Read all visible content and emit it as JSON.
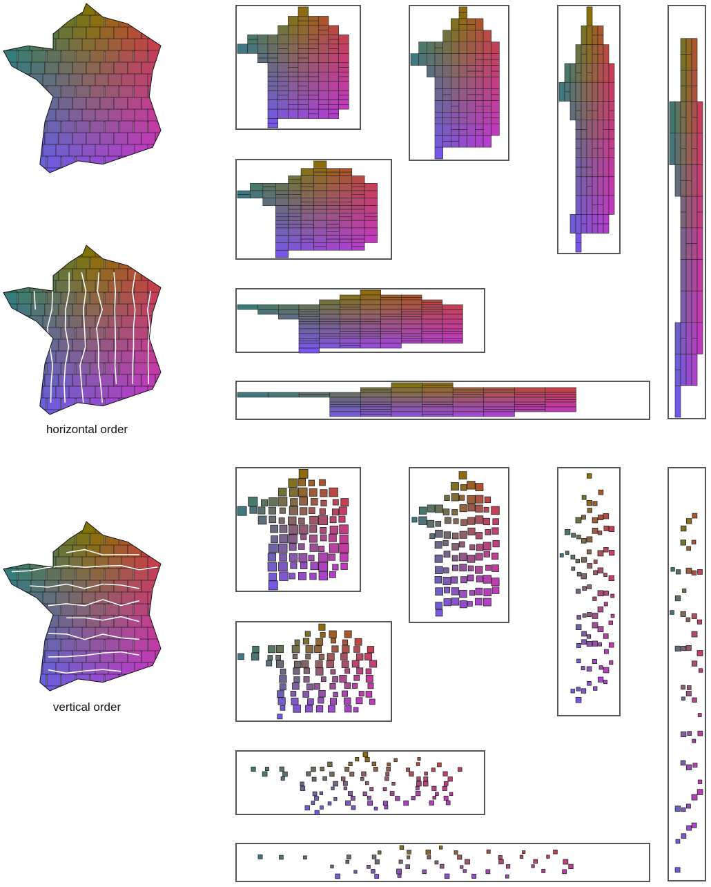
{
  "captions": {
    "horizontal": "horizontal order",
    "vertical": "vertical order"
  }
}
